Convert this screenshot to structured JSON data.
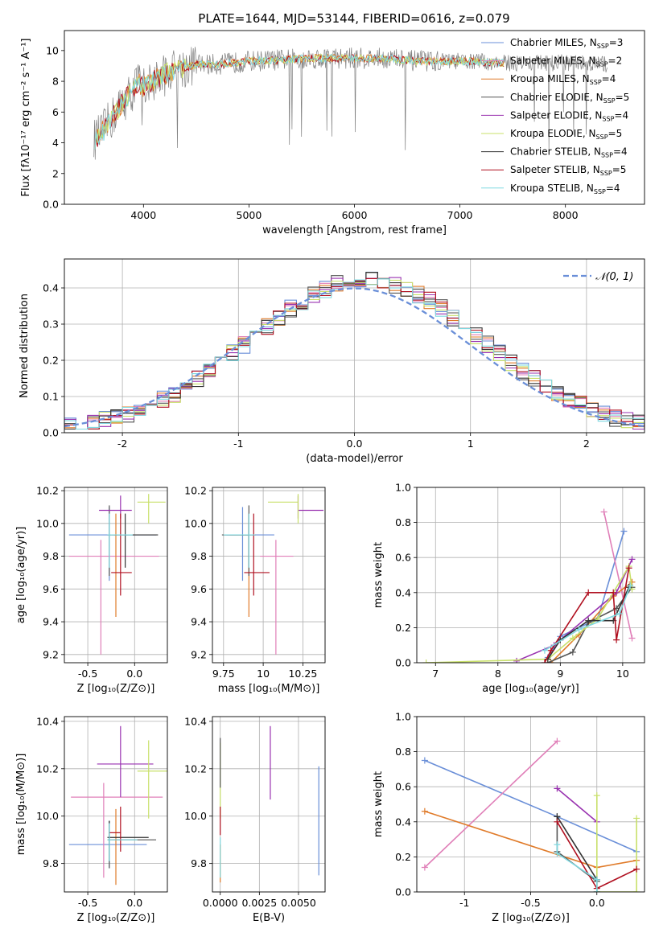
{
  "figure": {
    "title": "PLATE=1644, MJD=53144, FIBERID=0616, z=0.079"
  },
  "colors": {
    "Chabrier MILES": "#6a8fd8",
    "Salpeter MILES": "#e07fb8",
    "Kroupa MILES": "#e07b2a",
    "Chabrier ELODIE": "#555555",
    "Salpeter ELODIE": "#9932b0",
    "Kroupa ELODIE": "#c8e06a",
    "Chabrier STELIB": "#333333",
    "Salpeter STELIB": "#b01020",
    "Kroupa STELIB": "#7fd8e0",
    "data": "#808080",
    "normal": "#6a8fd8",
    "grid": "#b0b0b0"
  },
  "chart_data": [
    {
      "id": "spectrum",
      "type": "line",
      "xlabel": "wavelength [Angstrom, rest frame]",
      "ylabel": "Flux [fλ10⁻¹⁷ erg cm⁻² s⁻¹ A⁻¹]",
      "xlim": [
        3250,
        8750
      ],
      "ylim": [
        0,
        11.3
      ],
      "xticks": [
        4000,
        5000,
        6000,
        7000,
        8000
      ],
      "yticks": [
        0,
        2,
        4,
        6,
        8,
        10
      ],
      "grid": false,
      "legend_position": "top-right",
      "continuum": {
        "x": [
          3530,
          3600,
          3700,
          3800,
          3900,
          3950,
          4000,
          4100,
          4200,
          4300,
          4400,
          4500,
          4700,
          5000,
          5300,
          5600,
          6000,
          6300,
          6600,
          6900,
          7100,
          7400,
          7700,
          8000,
          8400
        ],
        "y": [
          4.2,
          4.6,
          5.6,
          6.6,
          7.4,
          8.0,
          7.6,
          8.1,
          8.4,
          8.8,
          8.9,
          9.1,
          9.1,
          9.3,
          9.4,
          9.5,
          9.5,
          9.5,
          9.3,
          9.3,
          9.3,
          9.2,
          9.2,
          9.2,
          9.1
        ]
      },
      "series": [
        {
          "name": "Chabrier MILES, N",
          "sub": "SSP",
          "suffix": "=3"
        },
        {
          "name": "Salpeter MILES, N",
          "sub": "SSP",
          "suffix": "=2"
        },
        {
          "name": "Kroupa MILES, N",
          "sub": "SSP",
          "suffix": "=4"
        },
        {
          "name": "Chabrier ELODIE, N",
          "sub": "SSP",
          "suffix": "=5"
        },
        {
          "name": "Salpeter ELODIE, N",
          "sub": "SSP",
          "suffix": "=4"
        },
        {
          "name": "Kroupa ELODIE, N",
          "sub": "SSP",
          "suffix": "=5"
        },
        {
          "name": "Chabrier STELIB, N",
          "sub": "SSP",
          "suffix": "=4"
        },
        {
          "name": "Salpeter STELIB, N",
          "sub": "SSP",
          "suffix": "=5"
        },
        {
          "name": "Kroupa STELIB, N",
          "sub": "SSP",
          "suffix": "=4"
        }
      ]
    },
    {
      "id": "residuals",
      "type": "histogram",
      "xlabel": "(data-model)/error",
      "ylabel": "Normed distribution",
      "xlim": [
        -2.5,
        2.5
      ],
      "ylim": [
        0,
        0.48
      ],
      "xticks": [
        -2,
        -1,
        0,
        1,
        2
      ],
      "yticks": [
        0.0,
        0.1,
        0.2,
        0.3,
        0.4
      ],
      "grid": true,
      "legend_position": "top-right",
      "legend_label": "𝒩(0, 1)",
      "bin_width": 0.1
    },
    {
      "id": "age_vs_Z",
      "type": "errorbar",
      "xlabel": "Z [log₁₀(Z/Z⊙)]",
      "ylabel": "age  [log₁₀(age/yr)]",
      "xlim": [
        -0.75,
        0.35
      ],
      "ylim": [
        9.15,
        10.22
      ],
      "xticks": [
        -0.5,
        0.0
      ],
      "yticks": [
        9.2,
        9.4,
        9.6,
        9.8,
        10.0,
        10.2
      ],
      "points": [
        {
          "model": "Chabrier MILES",
          "x": -0.27,
          "xerr": [
            0.43,
            0.5
          ],
          "y": 9.93,
          "yerr": [
            0.28,
            0.17
          ]
        },
        {
          "model": "Salpeter MILES",
          "x": -0.36,
          "xerr": [
            0.34,
            0.62
          ],
          "y": 9.8,
          "yerr": [
            0.6,
            0.1
          ]
        },
        {
          "model": "Kroupa MILES",
          "x": -0.2,
          "xerr": [
            0.02,
            0.0
          ],
          "y": 9.93,
          "yerr": [
            0.5,
            0.13
          ]
        },
        {
          "model": "Chabrier ELODIE",
          "x": -0.27,
          "xerr": [
            0.02,
            0.02
          ],
          "y": 9.93,
          "yerr": [
            0.25,
            0.18
          ]
        },
        {
          "model": "Salpeter ELODIE",
          "x": -0.15,
          "xerr": [
            0.23,
            0.12
          ],
          "y": 10.08,
          "yerr": [
            0.05,
            0.09
          ]
        },
        {
          "model": "Kroupa ELODIE",
          "x": 0.15,
          "xerr": [
            0.12,
            0.18
          ],
          "y": 10.13,
          "yerr": [
            0.13,
            0.05
          ]
        },
        {
          "model": "Chabrier STELIB",
          "x": -0.1,
          "xerr": [
            0.15,
            0.35
          ],
          "y": 9.93,
          "yerr": [
            0.2,
            0.13
          ]
        },
        {
          "model": "Salpeter STELIB",
          "x": -0.15,
          "xerr": [
            0.1,
            0.12
          ],
          "y": 9.7,
          "yerr": [
            0.14,
            0.36
          ]
        },
        {
          "model": "Kroupa STELIB",
          "x": -0.27,
          "xerr": [
            0.02,
            0.25
          ],
          "y": 9.93,
          "yerr": [
            0.2,
            0.13
          ]
        }
      ]
    },
    {
      "id": "age_vs_mass",
      "type": "errorbar",
      "xlabel": "mass [log₁₀(M/M⊙)]",
      "xlim": [
        9.68,
        10.39
      ],
      "ylim": [
        9.15,
        10.22
      ],
      "xticks": [
        9.75,
        10.0,
        10.25
      ],
      "yticks": [
        9.2,
        9.4,
        9.6,
        9.8,
        10.0,
        10.2
      ],
      "points": [
        {
          "model": "Chabrier MILES",
          "x": 9.87,
          "xerr": [
            0.1,
            0.2
          ],
          "y": 9.93,
          "yerr": [
            0.28,
            0.17
          ]
        },
        {
          "model": "Salpeter MILES",
          "x": 10.08,
          "xerr": [
            0.1,
            0.11
          ],
          "y": 9.8,
          "yerr": [
            0.6,
            0.1
          ]
        },
        {
          "model": "Kroupa MILES",
          "x": 9.91,
          "xerr": [
            0.12,
            0.0
          ],
          "y": 9.93,
          "yerr": [
            0.5,
            0.13
          ]
        },
        {
          "model": "Chabrier ELODIE",
          "x": 9.91,
          "xerr": [
            0.17,
            0.0
          ],
          "y": 9.93,
          "yerr": [
            0.25,
            0.18
          ]
        },
        {
          "model": "Salpeter ELODIE",
          "x": 10.22,
          "xerr": [
            0.0,
            0.16
          ],
          "y": 10.08,
          "yerr": [
            0.05,
            0.09
          ]
        },
        {
          "model": "Kroupa ELODIE",
          "x": 10.22,
          "xerr": [
            0.19,
            0.0
          ],
          "y": 10.13,
          "yerr": [
            0.13,
            0.05
          ]
        },
        {
          "model": "Chabrier STELIB",
          "x": 9.91,
          "xerr": [
            0.16,
            0.04
          ],
          "y": 9.93,
          "yerr": [
            0.2,
            0.13
          ]
        },
        {
          "model": "Salpeter STELIB",
          "x": 9.94,
          "xerr": [
            0.06,
            0.1
          ],
          "y": 9.7,
          "yerr": [
            0.14,
            0.36
          ]
        },
        {
          "model": "Kroupa STELIB",
          "x": 9.91,
          "xerr": [
            0.16,
            0.04
          ],
          "y": 9.93,
          "yerr": [
            0.2,
            0.13
          ]
        }
      ]
    },
    {
      "id": "weight_vs_age",
      "type": "line",
      "xlabel": "age  [log₁₀(age/yr)]",
      "ylabel": "mass weight",
      "xlim": [
        6.7,
        10.35
      ],
      "ylim": [
        0,
        1.0
      ],
      "xticks": [
        7,
        8,
        9,
        10
      ],
      "yticks": [
        0.0,
        0.2,
        0.4,
        0.6,
        0.8,
        1.0
      ],
      "series": [
        {
          "model": "Chabrier MILES",
          "x": [
            8.8,
            9.0,
            9.6,
            10.02
          ],
          "y": [
            0.03,
            0.15,
            0.25,
            0.75
          ]
        },
        {
          "model": "Salpeter MILES",
          "x": [
            9.7,
            10.15
          ],
          "y": [
            0.86,
            0.14
          ]
        },
        {
          "model": "Kroupa MILES",
          "x": [
            8.85,
            9.3,
            9.85,
            10.15
          ],
          "y": [
            0.0,
            0.16,
            0.38,
            0.46
          ]
        },
        {
          "model": "Chabrier ELODIE",
          "x": [
            8.8,
            9.2,
            9.45,
            9.9,
            10.15
          ],
          "y": [
            0.0,
            0.06,
            0.23,
            0.31,
            0.43
          ]
        },
        {
          "model": "Salpeter ELODIE",
          "x": [
            8.3,
            8.9,
            9.9,
            10.15
          ],
          "y": [
            0.01,
            0.1,
            0.4,
            0.59
          ]
        },
        {
          "model": "Kroupa ELODIE",
          "x": [
            6.85,
            8.8,
            9.2,
            9.6,
            10.1,
            10.15
          ],
          "y": [
            0.0,
            0.02,
            0.14,
            0.25,
            0.55,
            0.42
          ]
        },
        {
          "model": "Chabrier STELIB",
          "x": [
            8.8,
            9.0,
            9.45,
            9.85,
            10.1
          ],
          "y": [
            0.02,
            0.13,
            0.24,
            0.24,
            0.43
          ]
        },
        {
          "model": "Salpeter STELIB",
          "x": [
            8.75,
            8.85,
            9.45,
            9.85,
            9.9,
            10.1
          ],
          "y": [
            0.0,
            0.07,
            0.4,
            0.4,
            0.13,
            0.54
          ]
        },
        {
          "model": "Kroupa STELIB",
          "x": [
            8.75,
            9.3,
            9.95,
            10.12
          ],
          "y": [
            0.07,
            0.19,
            0.28,
            0.44
          ]
        }
      ]
    },
    {
      "id": "mass_vs_Z",
      "type": "errorbar",
      "xlabel": "Z [log₁₀(Z/Z⊙)]",
      "ylabel": "mass [log₁₀(M/M⊙)]",
      "xlim": [
        -0.75,
        0.35
      ],
      "ylim": [
        9.68,
        10.42
      ],
      "xticks": [
        -0.5,
        0.0
      ],
      "yticks": [
        9.8,
        10.0,
        10.2,
        10.4
      ],
      "points": [
        {
          "model": "Chabrier MILES",
          "x": -0.27,
          "xerr": [
            0.43,
            0.4
          ],
          "y": 9.88,
          "yerr": [
            0.1,
            0.1
          ]
        },
        {
          "model": "Salpeter MILES",
          "x": -0.33,
          "xerr": [
            0.35,
            0.63
          ],
          "y": 10.08,
          "yerr": [
            0.34,
            0.06
          ]
        },
        {
          "model": "Kroupa MILES",
          "x": -0.2,
          "xerr": [
            0.0,
            0.0
          ],
          "y": 9.9,
          "yerr": [
            0.19,
            0.13
          ]
        },
        {
          "model": "Chabrier ELODIE",
          "x": -0.27,
          "xerr": [
            0.02,
            0.5
          ],
          "y": 9.9,
          "yerr": [
            0.12,
            0.08
          ]
        },
        {
          "model": "Salpeter ELODIE",
          "x": -0.15,
          "xerr": [
            0.25,
            0.35
          ],
          "y": 10.22,
          "yerr": [
            0.14,
            0.16
          ]
        },
        {
          "model": "Kroupa ELODIE",
          "x": 0.15,
          "xerr": [
            0.12,
            0.2
          ],
          "y": 10.19,
          "yerr": [
            0.2,
            0.13
          ]
        },
        {
          "model": "Chabrier STELIB",
          "x": -0.27,
          "xerr": [
            0.02,
            0.42
          ],
          "y": 9.91,
          "yerr": [
            0.1,
            0.07
          ]
        },
        {
          "model": "Salpeter STELIB",
          "x": -0.15,
          "xerr": [
            0.12,
            0.0
          ],
          "y": 9.93,
          "yerr": [
            0.08,
            0.11
          ]
        },
        {
          "model": "Kroupa STELIB",
          "x": -0.27,
          "xerr": [
            0.02,
            0.3
          ],
          "y": 9.9,
          "yerr": [
            0.09,
            0.07
          ]
        }
      ]
    },
    {
      "id": "mass_vs_ebv",
      "type": "errorbar",
      "xlabel": "E(B-V)",
      "xlim": [
        -0.0005,
        0.0067
      ],
      "ylim": [
        9.68,
        10.42
      ],
      "xticks": [
        0.0,
        0.0025,
        0.005
      ],
      "xticklabels": [
        "0.0000",
        "0.0025",
        "0.0050"
      ],
      "yticks": [
        9.8,
        10.0,
        10.2,
        10.4
      ],
      "points": [
        {
          "model": "Chabrier MILES",
          "x": 0.0063,
          "y": 9.98,
          "yerr": [
            0.23,
            0.23
          ]
        },
        {
          "model": "Salpeter ELODIE",
          "x": 0.0032,
          "y": 10.22,
          "yerr": [
            0.15,
            0.16
          ]
        },
        {
          "model": "Kroupa ELODIE",
          "x": 0.0,
          "y": 10.19,
          "yerr": [
            0.2,
            0.12
          ]
        },
        {
          "model": "Chabrier ELODIE",
          "x": 0.0,
          "y": 10.22,
          "yerr": [
            0.1,
            0.11
          ]
        },
        {
          "model": "Kroupa MILES",
          "x": 0.0,
          "y": 9.83,
          "yerr": [
            0.11,
            0.05
          ]
        },
        {
          "model": "Salpeter STELIB",
          "x": 0.0,
          "y": 9.97,
          "yerr": [
            0.05,
            0.07
          ]
        },
        {
          "model": "Kroupa STELIB",
          "x": 0.0,
          "y": 9.84,
          "yerr": [
            0.1,
            0.07
          ]
        }
      ]
    },
    {
      "id": "weight_vs_Z",
      "type": "line",
      "xlabel": "Z [log₁₀(Z/Z⊙)]",
      "ylabel": "mass weight",
      "xlim": [
        -1.36,
        0.36
      ],
      "ylim": [
        0,
        1.0
      ],
      "xticks": [
        -1.0,
        -0.5,
        0.0
      ],
      "yticks": [
        0.0,
        0.2,
        0.4,
        0.6,
        0.8,
        1.0
      ],
      "series": [
        {
          "model": "Chabrier MILES",
          "x": [
            -1.3,
            -0.3,
            0.3
          ],
          "y": [
            0.75,
            0.43,
            0.23
          ]
        },
        {
          "model": "Salpeter MILES",
          "x": [
            -1.3,
            -0.3
          ],
          "y": [
            0.14,
            0.86
          ]
        },
        {
          "model": "Kroupa MILES",
          "x": [
            -1.3,
            0.0,
            0.3
          ],
          "y": [
            0.46,
            0.14,
            0.18
          ]
        },
        {
          "model": "Chabrier ELODIE",
          "x": [
            -0.3,
            -0.3,
            0.0,
            0.0
          ],
          "y": [
            0.43,
            0.23,
            0.06,
            0.06
          ]
        },
        {
          "model": "Salpeter ELODIE",
          "x": [
            -0.3,
            0.0
          ],
          "y": [
            0.59,
            0.4
          ]
        },
        {
          "model": "Kroupa ELODIE",
          "x": [
            0.0,
            0.0,
            0.3,
            0.3
          ],
          "y": [
            0.55,
            0.0,
            0.0,
            0.42
          ]
        },
        {
          "model": "Chabrier STELIB",
          "x": [
            -0.3,
            0.0,
            0.0
          ],
          "y": [
            0.43,
            0.07,
            0.0
          ]
        },
        {
          "model": "Salpeter STELIB",
          "x": [
            -0.3,
            0.0,
            0.3
          ],
          "y": [
            0.4,
            0.02,
            0.13
          ]
        },
        {
          "model": "Kroupa STELIB",
          "x": [
            -0.3,
            -0.3,
            0.0,
            0.0
          ],
          "y": [
            0.27,
            0.22,
            0.07,
            0.0
          ]
        }
      ]
    }
  ]
}
